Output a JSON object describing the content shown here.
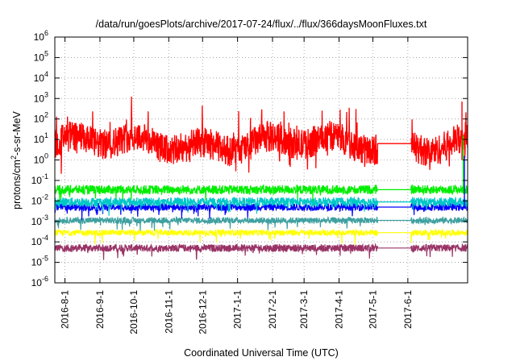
{
  "chart_data": {
    "type": "line",
    "title": "/data/run/goesPlots/archive/2017-07-24/flux/../flux/366daysMoonFluxes.txt",
    "xlabel": "Coordinated Universal Time (UTC)",
    "ylabel_parts": [
      "protons/cm",
      "2",
      "-s-sr-MeV"
    ],
    "y_scale": "log",
    "ylim_exponents": [
      -6,
      6
    ],
    "y_ticks": [
      {
        "base": "10",
        "exp": "-6"
      },
      {
        "base": "10",
        "exp": "-5"
      },
      {
        "base": "10",
        "exp": "-4"
      },
      {
        "base": "10",
        "exp": "-3"
      },
      {
        "base": "10",
        "exp": "-2"
      },
      {
        "base": "10",
        "exp": "-1"
      },
      {
        "base": "10",
        "exp": "0"
      },
      {
        "base": "10",
        "exp": "1"
      },
      {
        "base": "10",
        "exp": "2"
      },
      {
        "base": "10",
        "exp": "3"
      },
      {
        "base": "10",
        "exp": "4"
      },
      {
        "base": "10",
        "exp": "5"
      },
      {
        "base": "10",
        "exp": "6"
      }
    ],
    "xlim": [
      "2016-07-23",
      "2017-07-24"
    ],
    "x_ticks": [
      "2016-8-1",
      "2016-9-1",
      "2016-10-1",
      "2016-11-1",
      "2016-12-1",
      "2017-1-1",
      "2017-2-1",
      "2017-3-1",
      "2017-4-1",
      "2017-5-1",
      "2017-6-1"
    ],
    "grid": true,
    "gap": [
      "2017-05-05",
      "2017-06-04"
    ],
    "series": [
      {
        "color": "#ff0000",
        "level_log10": 0.8,
        "spread": 0.75
      },
      {
        "color": "#00ee00",
        "level_log10": -1.45,
        "spread": 0.22
      },
      {
        "color": "#00c8c8",
        "level_log10": -2.05,
        "spread": 0.22
      },
      {
        "color": "#0000ff",
        "level_log10": -2.3,
        "spread": 0.18
      },
      {
        "color": "#3fa0a0",
        "level_log10": -2.95,
        "spread": 0.15
      },
      {
        "color": "#ffff00",
        "level_log10": -3.55,
        "spread": 0.14
      },
      {
        "color": "#993366",
        "level_log10": -4.3,
        "spread": 0.18
      }
    ]
  }
}
